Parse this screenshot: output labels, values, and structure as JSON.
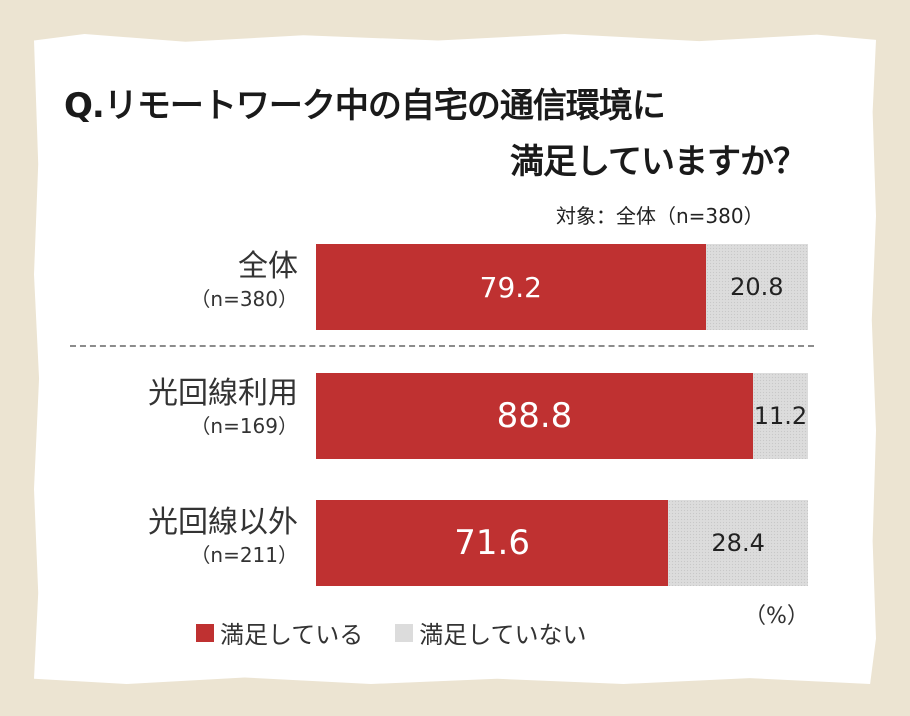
{
  "chart_data": {
    "type": "bar",
    "orientation": "horizontal-stacked-100",
    "title_line1": "Q.リモートワーク中の自宅の通信環境に",
    "title_line2": "満足していますか？",
    "subtitle": "対象：全体（n=380）",
    "categories": [
      {
        "name": "全体",
        "n": "（n=380）"
      },
      {
        "name": "光回線利用",
        "n": "（n=169）"
      },
      {
        "name": "光回線以外",
        "n": "（n=211）"
      }
    ],
    "series": [
      {
        "name": "満足している",
        "color": "#bf3131",
        "values": [
          79.2,
          88.8,
          71.6
        ]
      },
      {
        "name": "満足していない",
        "color": "#dcdcdc",
        "values": [
          20.8,
          11.2,
          28.4
        ]
      }
    ],
    "unit": "（%）",
    "xlim": [
      0,
      100
    ]
  }
}
